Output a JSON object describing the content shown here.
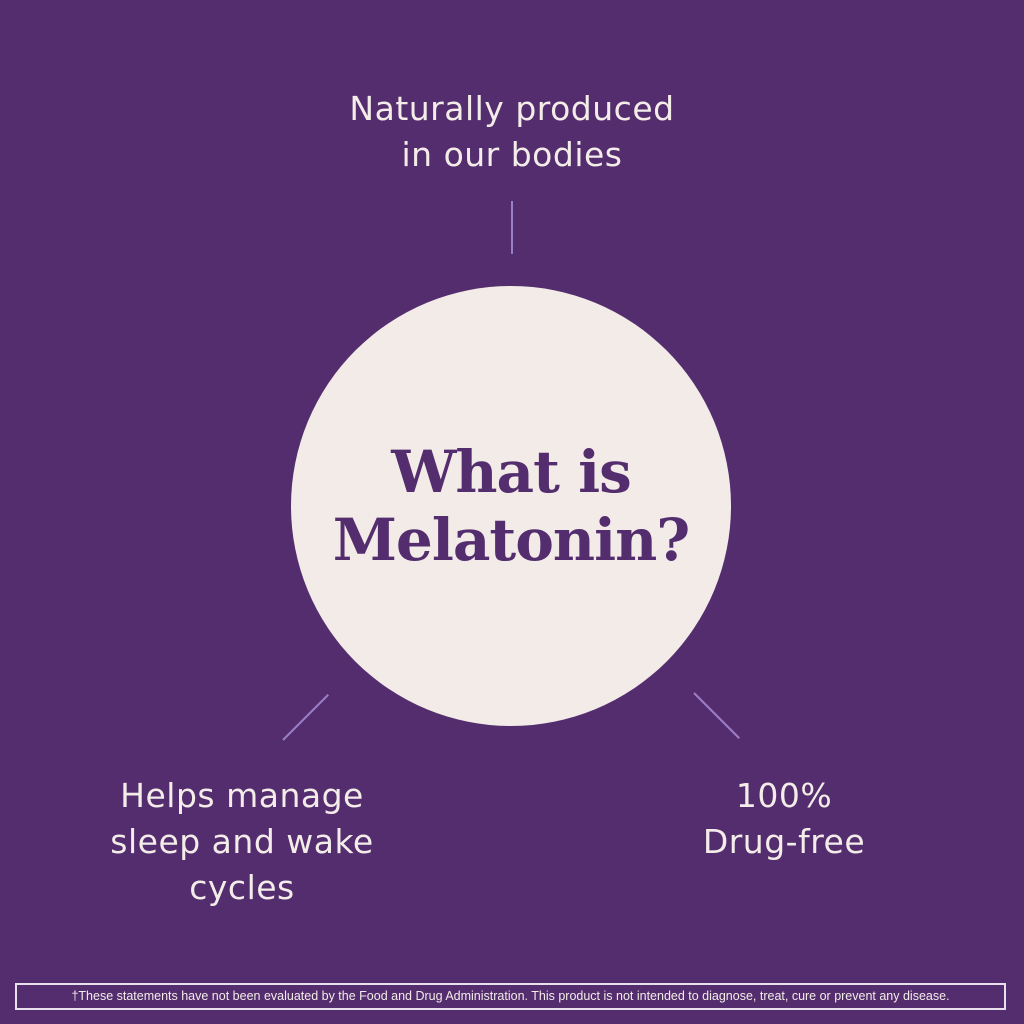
{
  "title_line1": "What is",
  "title_line2": "Melatonin?",
  "facts": {
    "top": {
      "line1": "Naturally produced",
      "line2": "in our bodies"
    },
    "left": {
      "line1": "Helps manage",
      "line2": "sleep and wake",
      "line3": "cycles"
    },
    "right": {
      "line1": "100%",
      "line2": "Drug-free"
    }
  },
  "disclaimer": "†These statements have not been evaluated by the Food and Drug Administration. This product is not intended to diagnose, treat, cure or prevent any disease.",
  "colors": {
    "background": "#542d6e",
    "circle": "#f2ebe8",
    "accent_line": "#9b7fc6"
  }
}
